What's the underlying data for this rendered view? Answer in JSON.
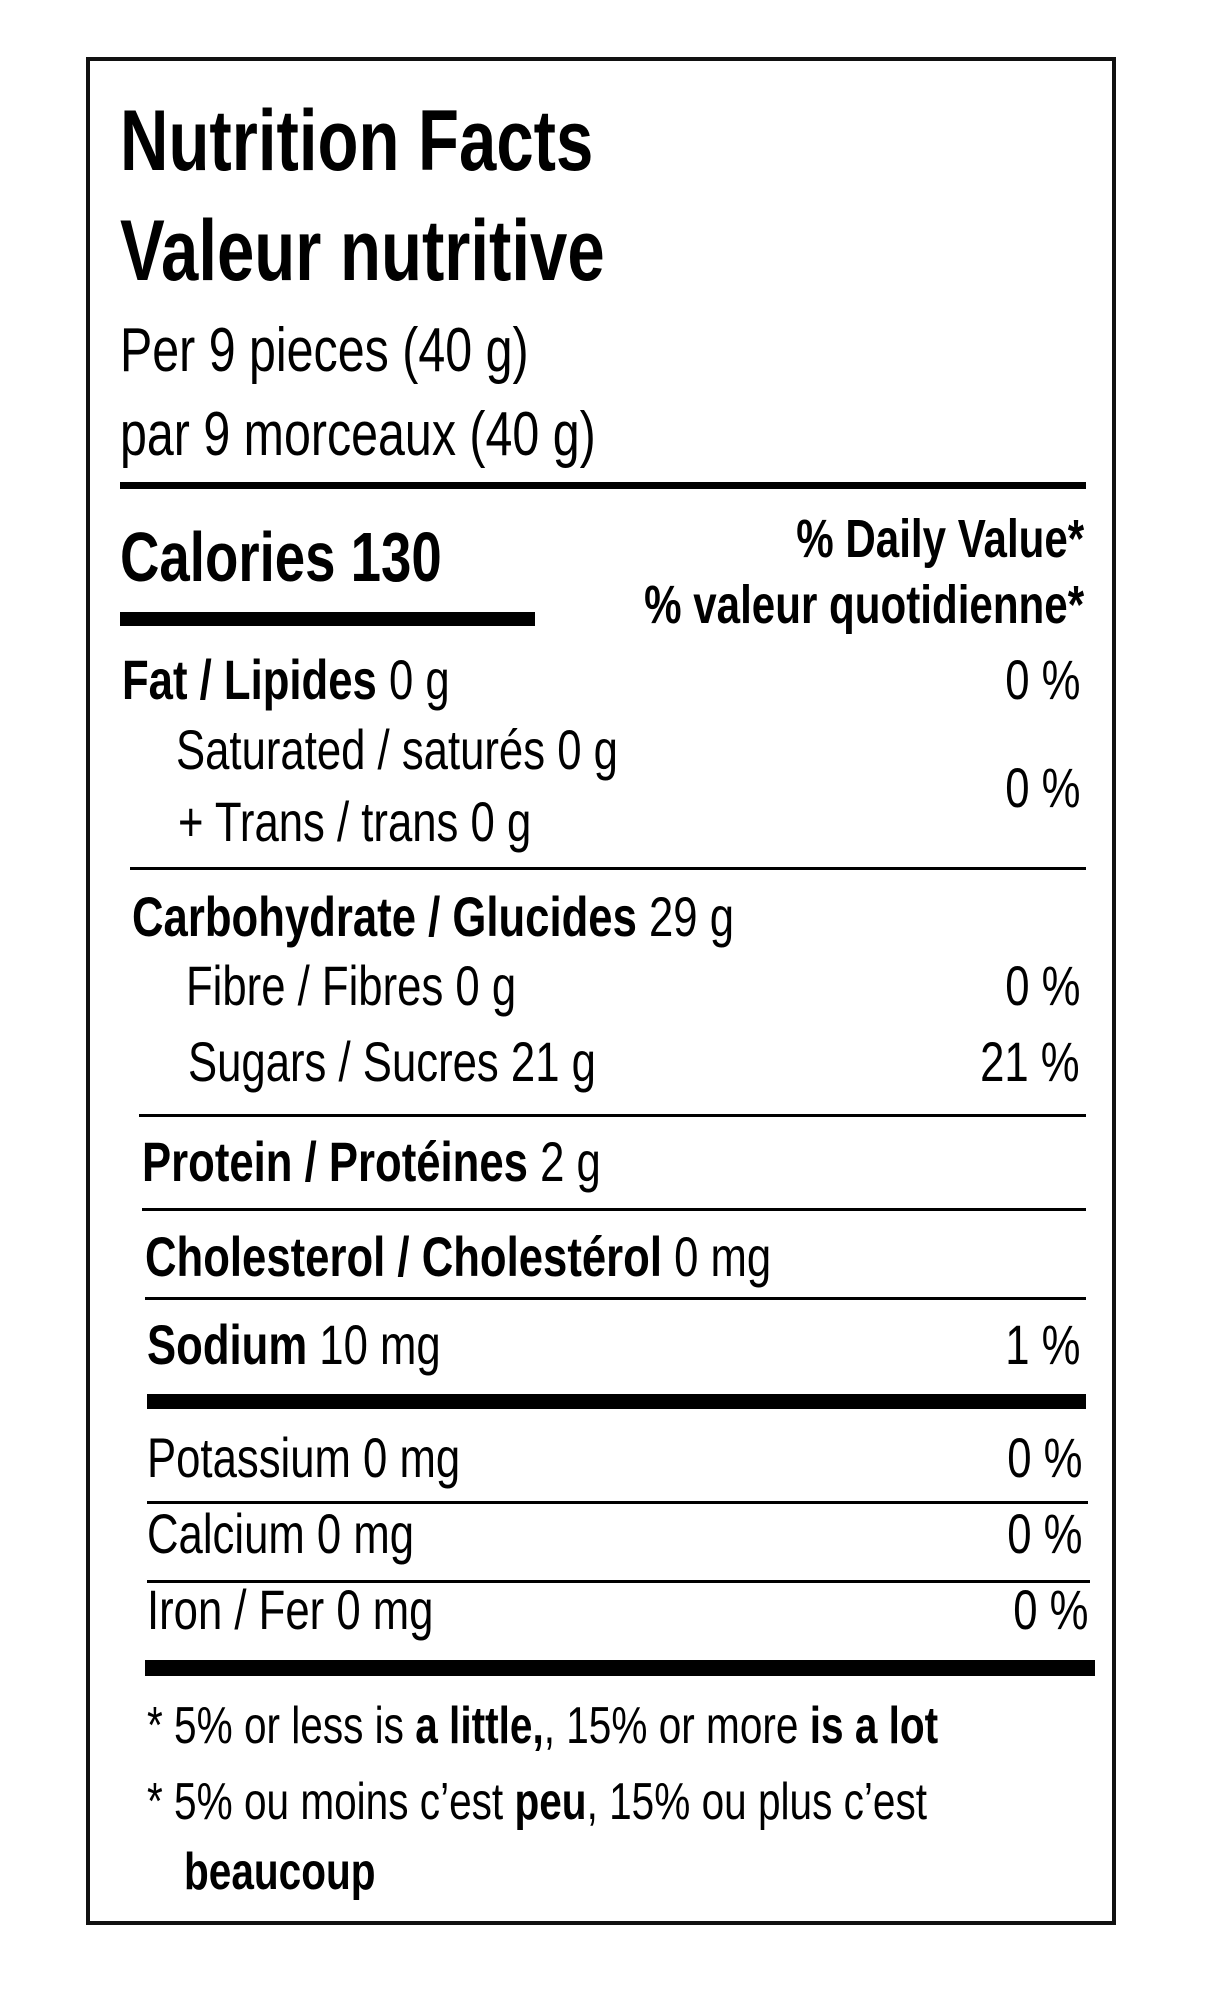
{
  "title_en": "Nutrition Facts",
  "title_fr": "Valeur nutritive",
  "serving_en": "Per 9 pieces (40 g)",
  "serving_fr": "par 9 morceaux (40 g)",
  "calories": {
    "label": "Calories",
    "value": "130"
  },
  "dv_header_en": "% Daily Value*",
  "dv_header_fr": "% valeur quotidienne*",
  "nutrients": {
    "fat": {
      "label": "Fat / Lipides",
      "amount": "0 g",
      "dv": "0 %"
    },
    "saturated": {
      "label": "Saturated / saturés",
      "amount": "0 g"
    },
    "trans": {
      "label": "+ Trans / trans",
      "amount": "0 g",
      "dv": "0 %"
    },
    "carbohydrate": {
      "label": "Carbohydrate / Glucides",
      "amount": "29 g"
    },
    "fibre": {
      "label": "Fibre / Fibres",
      "amount": "0 g",
      "dv": "0 %"
    },
    "sugars": {
      "label": "Sugars / Sucres",
      "amount": "21 g",
      "dv": "21 %"
    },
    "protein": {
      "label": "Protein / Protéines",
      "amount": "2 g"
    },
    "cholesterol": {
      "label": "Cholesterol / Cholestérol",
      "amount": "0 mg"
    },
    "sodium": {
      "label": "Sodium",
      "amount": "10 mg",
      "dv": "1 %"
    },
    "potassium": {
      "label": "Potassium",
      "amount": "0 mg",
      "dv": "0 %"
    },
    "calcium": {
      "label": "Calcium",
      "amount": "0 mg",
      "dv": "0 %"
    },
    "iron": {
      "label": "Iron / Fer",
      "amount": "0 mg",
      "dv": "0 %"
    }
  },
  "footnote_en": {
    "a": "* 5% or less is ",
    "b": "a little",
    "c": ", 15% or more ",
    "d": "is a lot"
  },
  "footnote_fr": {
    "a": "* 5% ou moins c’est ",
    "b": "peu",
    "c": ", 15% ou plus c’est",
    "d": "beaucoup"
  }
}
